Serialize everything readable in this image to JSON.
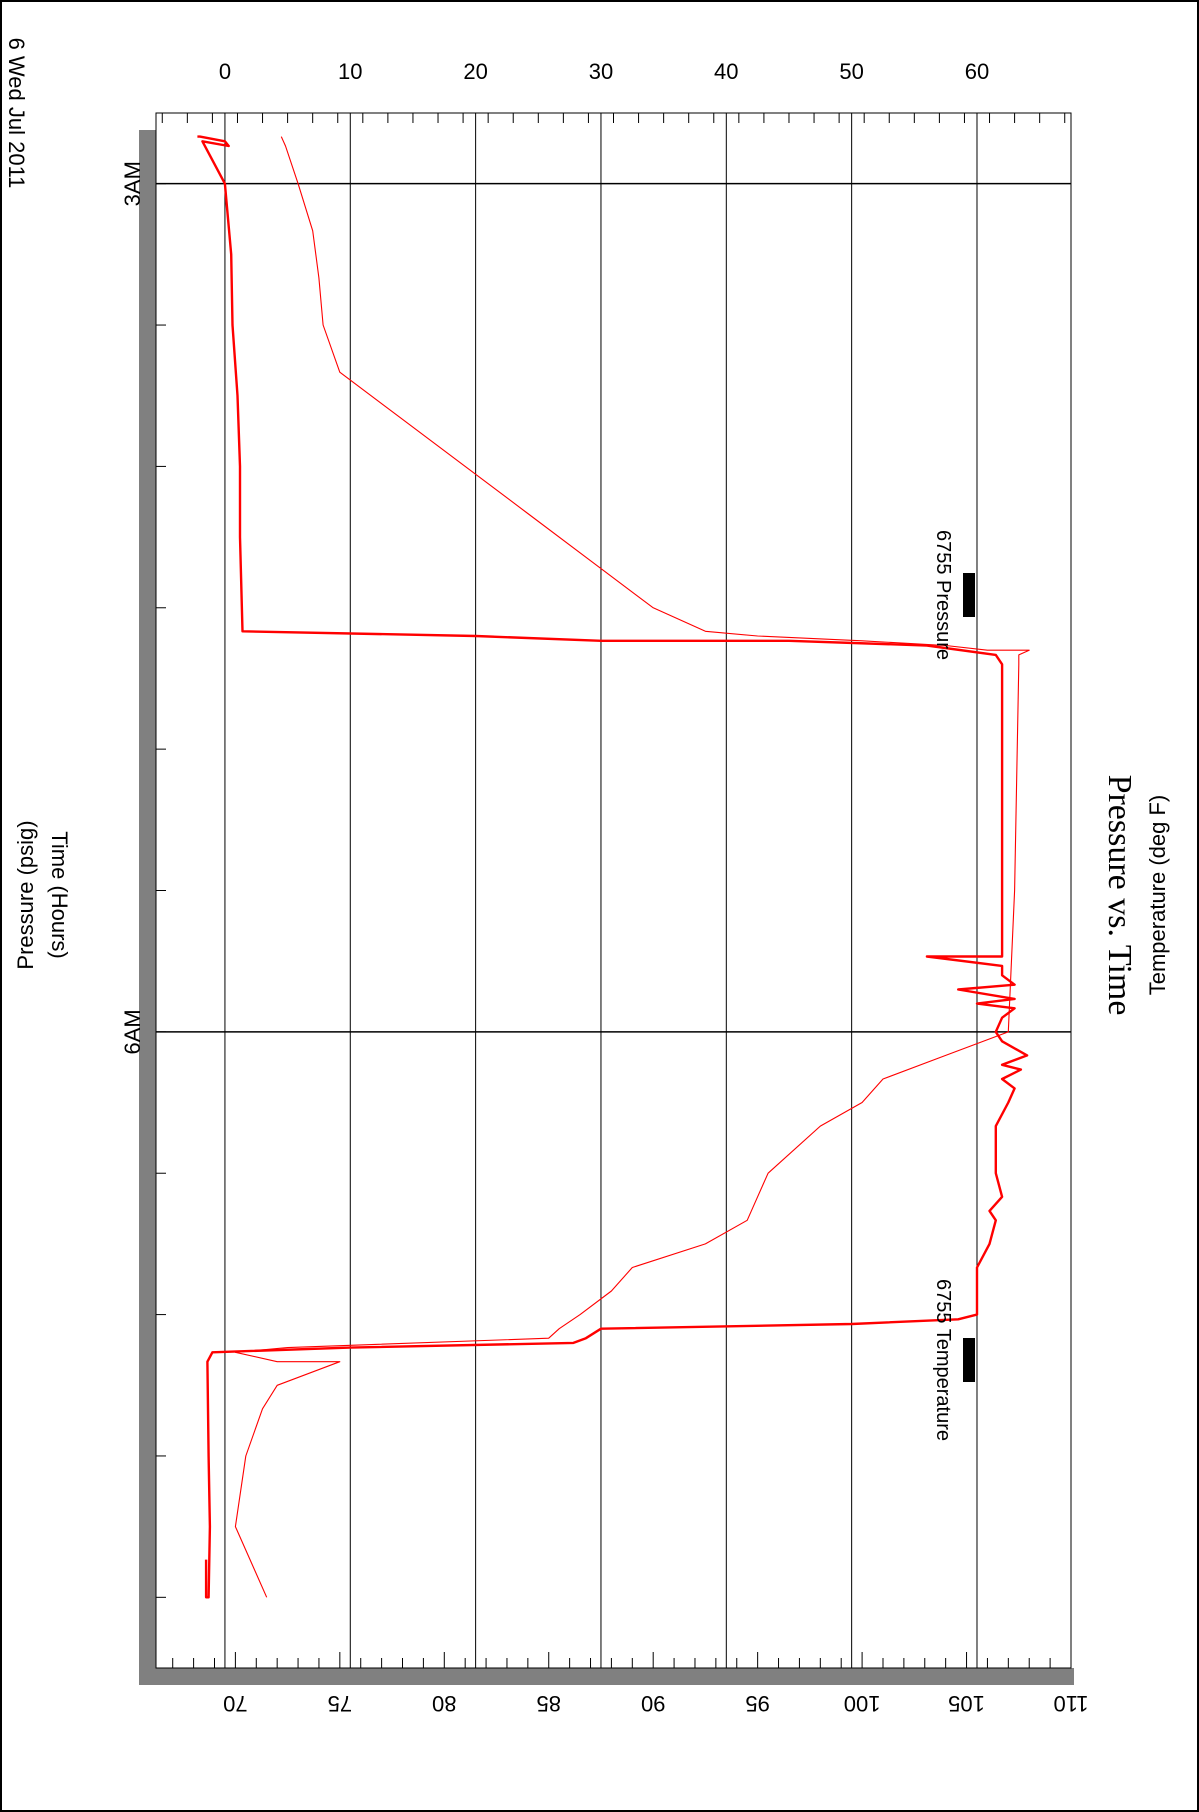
{
  "chart_data": {
    "type": "line",
    "title": "Pressure vs. Time",
    "date_label": "6 Wed Jul 2011",
    "x_axis": {
      "label": "Time (Hours)",
      "range": [
        "02:45",
        "08:15"
      ],
      "labeled_ticks": [
        {
          "time": "03:00",
          "label": "3AM"
        },
        {
          "time": "06:00",
          "label": "6AM"
        }
      ],
      "major_tick_interval_hours": 1,
      "grid": true
    },
    "y_axis_left": {
      "label": "Pressure (psig)",
      "range": [
        -5.5,
        67.5
      ],
      "tick_values": [
        0,
        10,
        20,
        30,
        40,
        50,
        60
      ],
      "tick_labels": [
        "0",
        "10",
        "20",
        "30",
        "40",
        "50",
        "60"
      ],
      "grid": true
    },
    "y_axis_right": {
      "label": "Temperature (deg F)",
      "range": [
        66.2,
        110
      ],
      "tick_values": [
        70,
        75,
        80,
        85,
        90,
        95,
        100,
        105,
        110
      ],
      "tick_labels": [
        "70",
        "75",
        "80",
        "85",
        "90",
        "95",
        "100",
        "105",
        "110"
      ]
    },
    "orientation": "rotated 90 degrees clockwise",
    "legend_placement": "right",
    "series": [
      {
        "name": "6755 Pressure",
        "axis": "left",
        "color": "#ff0000",
        "line_width": "thick",
        "points": [
          [
            "02:50",
            -2.2
          ],
          [
            "02:50",
            -2.0
          ],
          [
            "02:51",
            0.0
          ],
          [
            "02:52",
            0.3
          ],
          [
            "02:51",
            -1.8
          ],
          [
            "03:00",
            0.0
          ],
          [
            "03:15",
            0.5
          ],
          [
            "03:30",
            0.6
          ],
          [
            "03:45",
            1.0
          ],
          [
            "04:00",
            1.2
          ],
          [
            "04:15",
            1.2
          ],
          [
            "04:35",
            1.4
          ],
          [
            "04:36",
            20.0
          ],
          [
            "04:37",
            30.0
          ],
          [
            "04:37",
            45.0
          ],
          [
            "04:38",
            56.0
          ],
          [
            "04:40",
            61.5
          ],
          [
            "04:42",
            62.0
          ],
          [
            "05:00",
            62.0
          ],
          [
            "05:30",
            62.0
          ],
          [
            "05:44",
            62.0
          ],
          [
            "05:44",
            56.0
          ],
          [
            "05:46",
            62.0
          ],
          [
            "05:48",
            62.0
          ],
          [
            "05:50",
            63.0
          ],
          [
            "05:51",
            58.5
          ],
          [
            "05:53",
            63.0
          ],
          [
            "05:54",
            60.0
          ],
          [
            "05:55",
            63.0
          ],
          [
            "05:57",
            62.0
          ],
          [
            "06:00",
            61.5
          ],
          [
            "06:02",
            62.0
          ],
          [
            "06:05",
            64.0
          ],
          [
            "06:07",
            62.0
          ],
          [
            "06:08",
            63.5
          ],
          [
            "06:10",
            62.0
          ],
          [
            "06:12",
            63.0
          ],
          [
            "06:15",
            62.5
          ],
          [
            "06:20",
            61.5
          ],
          [
            "06:30",
            61.5
          ],
          [
            "06:35",
            62.0
          ],
          [
            "06:38",
            61.0
          ],
          [
            "06:40",
            61.5
          ],
          [
            "06:45",
            61.0
          ],
          [
            "06:50",
            60.0
          ],
          [
            "07:00",
            60.0
          ],
          [
            "07:01",
            58.5
          ],
          [
            "07:02",
            50.0
          ],
          [
            "07:03",
            30.0
          ],
          [
            "07:05",
            28.8
          ],
          [
            "07:06",
            27.8
          ],
          [
            "07:07",
            10.0
          ],
          [
            "07:08",
            -1.0
          ],
          [
            "07:10",
            -1.4
          ],
          [
            "07:30",
            -1.3
          ],
          [
            "07:45",
            -1.2
          ],
          [
            "08:00",
            -1.3
          ],
          [
            "08:00",
            -1.5
          ],
          [
            "07:52",
            -1.5
          ]
        ]
      },
      {
        "name": "6755 Temperature",
        "axis": "right",
        "color": "#ff0000",
        "line_width": "thin",
        "points": [
          [
            "02:50",
            72.2
          ],
          [
            "02:51",
            72.3
          ],
          [
            "02:52",
            72.4
          ],
          [
            "03:00",
            73.0
          ],
          [
            "03:10",
            73.7
          ],
          [
            "03:20",
            74.0
          ],
          [
            "03:30",
            74.2
          ],
          [
            "03:40",
            75.0
          ],
          [
            "03:50",
            78.0
          ],
          [
            "04:00",
            81.0
          ],
          [
            "04:10",
            84.0
          ],
          [
            "04:20",
            87.0
          ],
          [
            "04:30",
            90.0
          ],
          [
            "04:35",
            92.5
          ],
          [
            "04:36",
            95.0
          ],
          [
            "04:37",
            100.0
          ],
          [
            "04:38",
            104.0
          ],
          [
            "04:39",
            106.0
          ],
          [
            "04:39",
            108.0
          ],
          [
            "04:40",
            107.5
          ],
          [
            "04:42",
            107.5
          ],
          [
            "05:30",
            107.3
          ],
          [
            "06:00",
            107.0
          ],
          [
            "06:05",
            104.0
          ],
          [
            "06:10",
            101.0
          ],
          [
            "06:15",
            100.0
          ],
          [
            "06:20",
            98.0
          ],
          [
            "06:30",
            95.5
          ],
          [
            "06:35",
            95.0
          ],
          [
            "06:40",
            94.5
          ],
          [
            "06:45",
            92.5
          ],
          [
            "06:50",
            89.0
          ],
          [
            "06:55",
            88.0
          ],
          [
            "07:00",
            86.5
          ],
          [
            "07:03",
            85.5
          ],
          [
            "07:05",
            85.0
          ],
          [
            "07:07",
            72.5
          ],
          [
            "07:08",
            70.0
          ],
          [
            "07:10",
            72.0
          ],
          [
            "07:10",
            75.0
          ],
          [
            "07:15",
            72.0
          ],
          [
            "07:20",
            71.3
          ],
          [
            "07:30",
            70.5
          ],
          [
            "07:45",
            70.0
          ],
          [
            "08:00",
            71.5
          ]
        ]
      }
    ]
  }
}
